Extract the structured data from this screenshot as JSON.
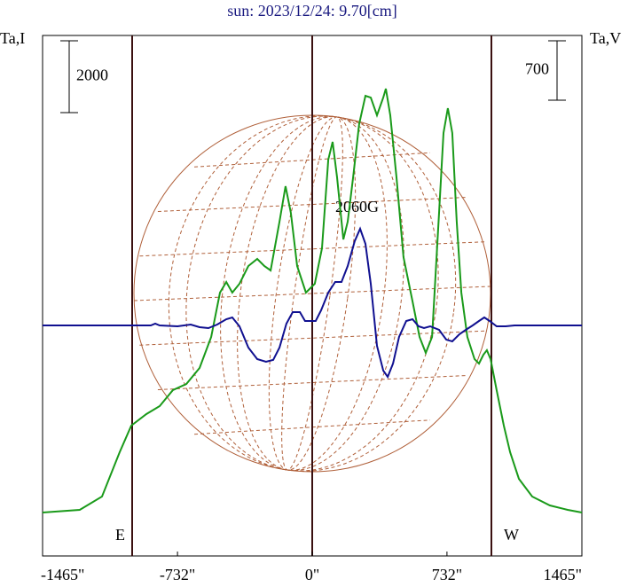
{
  "chart_data": {
    "type": "line",
    "title": "sun: 2023/12/24: 9.70[cm]",
    "y_label": "Ta,I",
    "y2_label": "Ta,V",
    "y_scale_bar": 2000,
    "y2_scale_bar": 700,
    "annotations": [
      "2060G",
      "E",
      "W"
    ],
    "xlim": [
      -1465,
      1465
    ],
    "xticks": [
      {
        "value": -1465,
        "label": "-1465\""
      },
      {
        "value": -732,
        "label": "-732\""
      },
      {
        "value": 0,
        "label": "0\""
      },
      {
        "value": 732,
        "label": "732\""
      },
      {
        "value": 1465,
        "label": "1465\""
      }
    ],
    "ylim": [
      -1210,
      13283
    ],
    "y2lim": [
      -2717,
      3417
    ],
    "series": [
      {
        "color": "#1a9a1a",
        "x": [
          -1465,
          -1263,
          -1142,
          -1046,
          -983,
          -901,
          -829,
          -757,
          -684,
          -612,
          -549,
          -501,
          -467,
          -434,
          -395,
          -347,
          -299,
          -260,
          -226,
          -178,
          -145,
          -116,
          -82,
          -34,
          14,
          53,
          87,
          111,
          135,
          169,
          193,
          222,
          255,
          289,
          318,
          352,
          386,
          400,
          424,
          458,
          496,
          545,
          583,
          617,
          651,
          689,
          713,
          737,
          761,
          785,
          810,
          843,
          882,
          906,
          930,
          949,
          969,
          1002,
          1041,
          1075,
          1123,
          1195,
          1291,
          1388,
          1465
        ],
        "values": [
          0,
          74,
          444,
          1679,
          2420,
          2741,
          2963,
          3407,
          3580,
          4025,
          4889,
          6123,
          6419,
          6123,
          6370,
          6864,
          7061,
          6864,
          6740,
          8098,
          9086,
          8345,
          6864,
          6123,
          6370,
          7358,
          9827,
          10320,
          9333,
          7605,
          8098,
          9333,
          10814,
          11604,
          11555,
          11061,
          11555,
          11802,
          11061,
          9333,
          7111,
          5876,
          4889,
          4444,
          4889,
          8345,
          10567,
          11259,
          10567,
          8098,
          6123,
          4889,
          4271,
          4148,
          4395,
          4518,
          4271,
          3407,
          2420,
          1679,
          938,
          444,
          198,
          74,
          0
        ]
      },
      {
        "color": "#101090",
        "axis": "y2",
        "x": [
          -1465,
          -877,
          -853,
          -829,
          -732,
          -660,
          -612,
          -564,
          -516,
          -467,
          -434,
          -395,
          -347,
          -299,
          -251,
          -212,
          -178,
          -140,
          -106,
          -67,
          -39,
          -10,
          19,
          48,
          87,
          125,
          159,
          193,
          231,
          260,
          289,
          318,
          352,
          386,
          410,
          439,
          472,
          511,
          545,
          578,
          607,
          641,
          689,
          728,
          761,
          800,
          834,
          872,
          906,
          935,
          964,
          1002,
          1051,
          1099,
          1465
        ],
        "values": [
          0,
          0,
          21,
          0,
          -10,
          10,
          -21,
          -31,
          10,
          73,
          94,
          -10,
          -261,
          -397,
          -428,
          -407,
          -261,
          21,
          157,
          157,
          52,
          52,
          52,
          178,
          387,
          512,
          512,
          700,
          993,
          1139,
          961,
          491,
          -240,
          -533,
          -606,
          -449,
          -136,
          52,
          73,
          -10,
          -31,
          -10,
          -52,
          -167,
          -188,
          -104,
          -52,
          0,
          52,
          94,
          52,
          -10,
          -10,
          0,
          0
        ]
      }
    ]
  }
}
